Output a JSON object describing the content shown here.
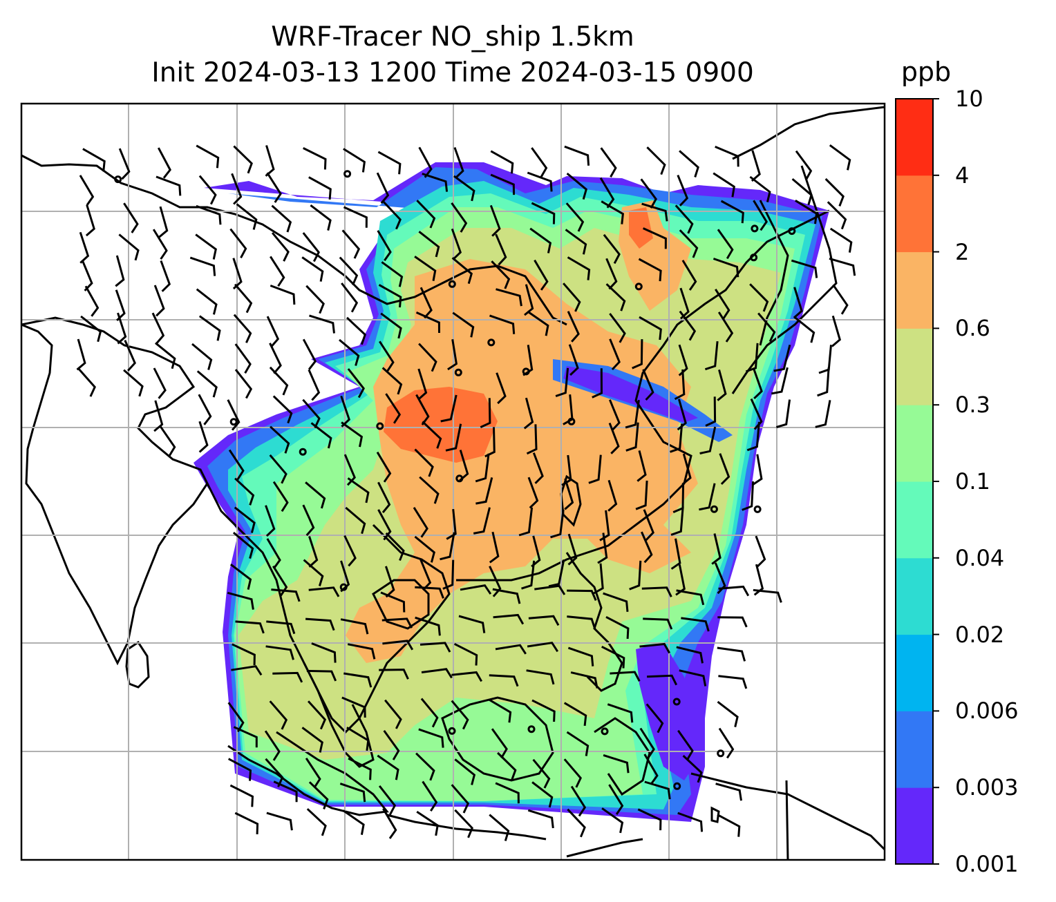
{
  "title": {
    "line1": "WRF-Tracer NO_ship 1.5km",
    "line2": "Init 2024-03-13 1200 Time 2024-03-15 0900"
  },
  "colorbar": {
    "unit": "ppb",
    "levels": [
      "0.001",
      "0.003",
      "0.006",
      "0.02",
      "0.04",
      "0.1",
      "0.3",
      "0.6",
      "2",
      "4",
      "10"
    ],
    "colors": [
      "#6428fa",
      "#3278f5",
      "#00b4f0",
      "#2ddcd2",
      "#64faba",
      "#96fa96",
      "#cde182",
      "#fab464",
      "#ff7337",
      "#ff2d14"
    ]
  },
  "map": {
    "variable": "NO_ship",
    "grid": "lat-lon graticule",
    "wind": "barbs"
  }
}
